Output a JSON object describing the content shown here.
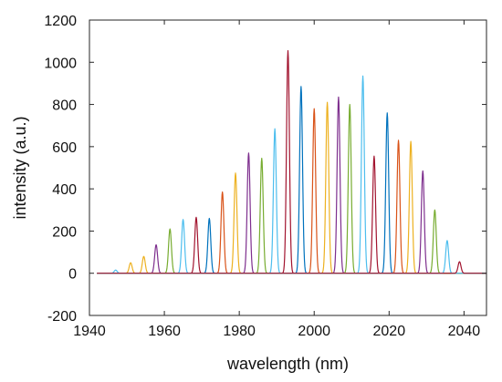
{
  "chart_data": {
    "type": "line",
    "title": "",
    "xlabel": "wavelength (nm)",
    "ylabel": "intensity (a.u.)",
    "xlim": [
      1940,
      2046
    ],
    "ylim": [
      -200,
      1200
    ],
    "xticks": [
      1940,
      1960,
      1980,
      2000,
      2020,
      2040
    ],
    "yticks": [
      -200,
      0,
      200,
      400,
      600,
      800,
      1000,
      1200
    ],
    "grid": false,
    "legend": "none",
    "baseline": 0,
    "peak_width_nm": 0.55,
    "color_cycle": [
      "#0072BD",
      "#D95319",
      "#EDB120",
      "#7E2F8E",
      "#77AC30",
      "#4DBEEE",
      "#A2142F"
    ],
    "series": [
      {
        "peak_x": 1947.0,
        "peak_y": 15,
        "color": "#4DBEEE"
      },
      {
        "peak_x": 1951.0,
        "peak_y": 50,
        "color": "#EDB120"
      },
      {
        "peak_x": 1954.5,
        "peak_y": 80,
        "color": "#EDB120"
      },
      {
        "peak_x": 1957.8,
        "peak_y": 135,
        "color": "#7E2F8E"
      },
      {
        "peak_x": 1961.5,
        "peak_y": 210,
        "color": "#77AC30"
      },
      {
        "peak_x": 1965.0,
        "peak_y": 255,
        "color": "#4DBEEE"
      },
      {
        "peak_x": 1968.5,
        "peak_y": 265,
        "color": "#A2142F"
      },
      {
        "peak_x": 1972.0,
        "peak_y": 260,
        "color": "#0072BD"
      },
      {
        "peak_x": 1975.5,
        "peak_y": 385,
        "color": "#D95319"
      },
      {
        "peak_x": 1979.0,
        "peak_y": 475,
        "color": "#EDB120"
      },
      {
        "peak_x": 1982.5,
        "peak_y": 570,
        "color": "#7E2F8E"
      },
      {
        "peak_x": 1986.0,
        "peak_y": 545,
        "color": "#77AC30"
      },
      {
        "peak_x": 1989.5,
        "peak_y": 685,
        "color": "#4DBEEE"
      },
      {
        "peak_x": 1993.0,
        "peak_y": 1055,
        "color": "#A2142F"
      },
      {
        "peak_x": 1996.5,
        "peak_y": 885,
        "color": "#0072BD"
      },
      {
        "peak_x": 2000.0,
        "peak_y": 780,
        "color": "#D95319"
      },
      {
        "peak_x": 2003.5,
        "peak_y": 810,
        "color": "#EDB120"
      },
      {
        "peak_x": 2006.5,
        "peak_y": 835,
        "color": "#7E2F8E"
      },
      {
        "peak_x": 2009.5,
        "peak_y": 800,
        "color": "#77AC30"
      },
      {
        "peak_x": 2013.0,
        "peak_y": 935,
        "color": "#4DBEEE"
      },
      {
        "peak_x": 2016.0,
        "peak_y": 555,
        "color": "#A2142F"
      },
      {
        "peak_x": 2019.5,
        "peak_y": 760,
        "color": "#0072BD"
      },
      {
        "peak_x": 2022.5,
        "peak_y": 630,
        "color": "#D95319"
      },
      {
        "peak_x": 2025.8,
        "peak_y": 625,
        "color": "#EDB120"
      },
      {
        "peak_x": 2029.0,
        "peak_y": 485,
        "color": "#7E2F8E"
      },
      {
        "peak_x": 2032.2,
        "peak_y": 300,
        "color": "#77AC30"
      },
      {
        "peak_x": 2035.5,
        "peak_y": 155,
        "color": "#4DBEEE"
      },
      {
        "peak_x": 2038.8,
        "peak_y": 55,
        "color": "#A2142F"
      }
    ]
  }
}
